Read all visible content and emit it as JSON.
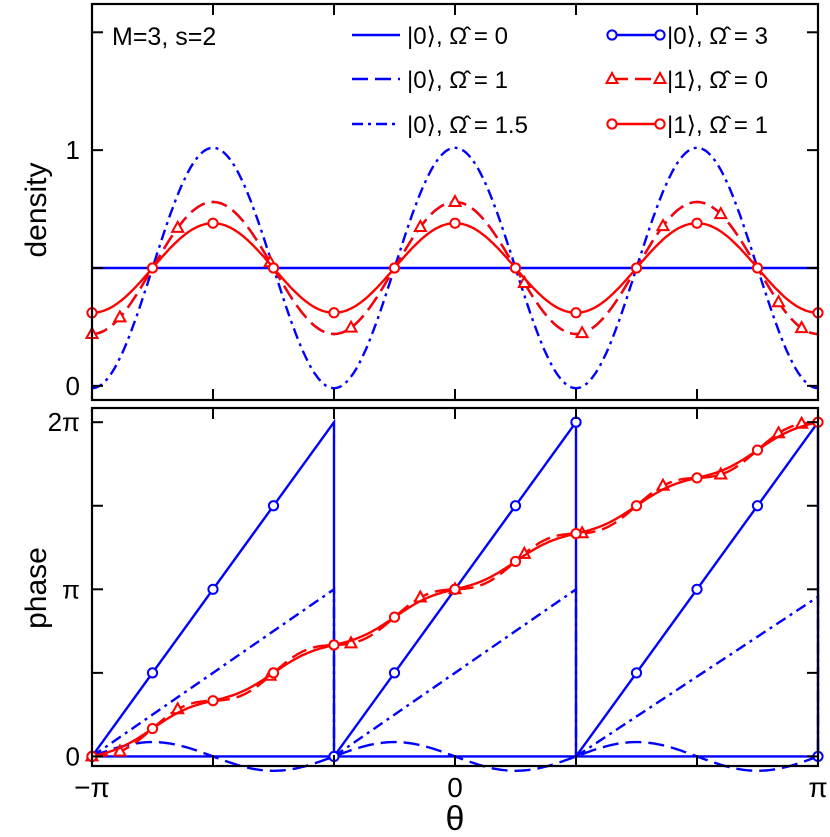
{
  "chart_data": [
    {
      "type": "line",
      "panel": "top",
      "annotation": "M=3, s=2",
      "ylabel": "density",
      "xlim": [
        -3.14159,
        3.14159
      ],
      "ylim": [
        -0.06,
        1.62
      ],
      "yticks": [
        {
          "v": 0,
          "label": "0"
        },
        {
          "v": 1,
          "label": "1"
        }
      ],
      "minor_yticks": [
        0.5,
        1.5
      ],
      "series": [
        {
          "name": "|0⟩, Ω̂ = 0",
          "kind": "flat",
          "level": 0.5,
          "color": "#0000ff",
          "style": "solid",
          "marker": "none"
        },
        {
          "name": "|0⟩, Ω̂ = 1",
          "kind": "sin",
          "mean": 0.5,
          "amp": 0.28,
          "color": "#0000ff",
          "style": "dash",
          "marker": "none"
        },
        {
          "name": "|0⟩, Ω̂ = 1.5",
          "kind": "sin",
          "mean": 0.5,
          "amp": 0.51,
          "color": "#0000ff",
          "style": "dashdot",
          "marker": "none"
        },
        {
          "name": "|0⟩, Ω̂ = 3",
          "kind": "flat",
          "level": 0.5,
          "color": "#0000ff",
          "style": "solid",
          "marker": "circle"
        },
        {
          "name": "|1⟩, Ω̂ = 0",
          "kind": "sin",
          "mean": 0.5,
          "amp": 0.28,
          "color": "#ff0000",
          "style": "dash",
          "marker": "triangle"
        },
        {
          "name": "|1⟩, Ω̂ = 1",
          "kind": "sin",
          "mean": 0.5,
          "amp": 0.19,
          "color": "#ff0000",
          "style": "solid",
          "marker": "circle"
        }
      ]
    },
    {
      "type": "line",
      "panel": "bottom",
      "ylabel": "phase",
      "xlabel": "θ",
      "xlim": [
        -3.14159,
        3.14159
      ],
      "ylim": [
        -0.18,
        6.55
      ],
      "xticks": [
        {
          "v": -3.14159,
          "label": "−π"
        },
        {
          "v": 0,
          "label": "0"
        },
        {
          "v": 3.14159,
          "label": "π"
        }
      ],
      "minor_xticks": [
        -2.0944,
        -1.0472,
        1.0472,
        2.0944
      ],
      "yticks": [
        {
          "v": 0,
          "label": "0"
        },
        {
          "v": 3.14159,
          "label": "π"
        },
        {
          "v": 6.28319,
          "label": "2π"
        }
      ],
      "minor_yticks": [
        1.5708,
        4.7124
      ],
      "series": [
        {
          "name": "|0⟩, Ω̂ = 0",
          "kind": "zero",
          "color": "#0000ff",
          "style": "solid"
        },
        {
          "name": "|0⟩, Ω̂ = 1",
          "kind": "wiggle",
          "amp": 0.27,
          "color": "#0000ff",
          "style": "dash"
        },
        {
          "name": "|0⟩, Ω̂ = 1.5",
          "kind": "sawtooth",
          "segments": [
            [
              -3.14159,
              0.0,
              -1.0472,
              3.14159
            ],
            [
              -1.0472,
              0.0,
              1.0472,
              3.14159
            ],
            [
              1.0472,
              0.0,
              3.14159,
              3.0
            ]
          ],
          "color": "#0000ff",
          "style": "dashdot"
        },
        {
          "name": "|0⟩, Ω̂ = 3",
          "kind": "sawtooth",
          "segments": [
            [
              -3.14159,
              0.0,
              -1.0472,
              6.28319
            ],
            [
              -1.0472,
              0.0,
              1.0472,
              6.28319
            ],
            [
              1.0472,
              0.0,
              3.14159,
              6.28319
            ]
          ],
          "color": "#0000ff",
          "style": "solid",
          "marker": "circle"
        },
        {
          "name": "|1⟩, Ω̂ = 0",
          "kind": "linear_wiggle",
          "amp": 0.15,
          "color": "#ff0000",
          "style": "dash",
          "marker": "triangle"
        },
        {
          "name": "|1⟩, Ω̂ = 1",
          "kind": "linear_wiggle",
          "amp": 0.08,
          "color": "#ff0000",
          "style": "solid",
          "marker": "circle"
        }
      ]
    }
  ]
}
